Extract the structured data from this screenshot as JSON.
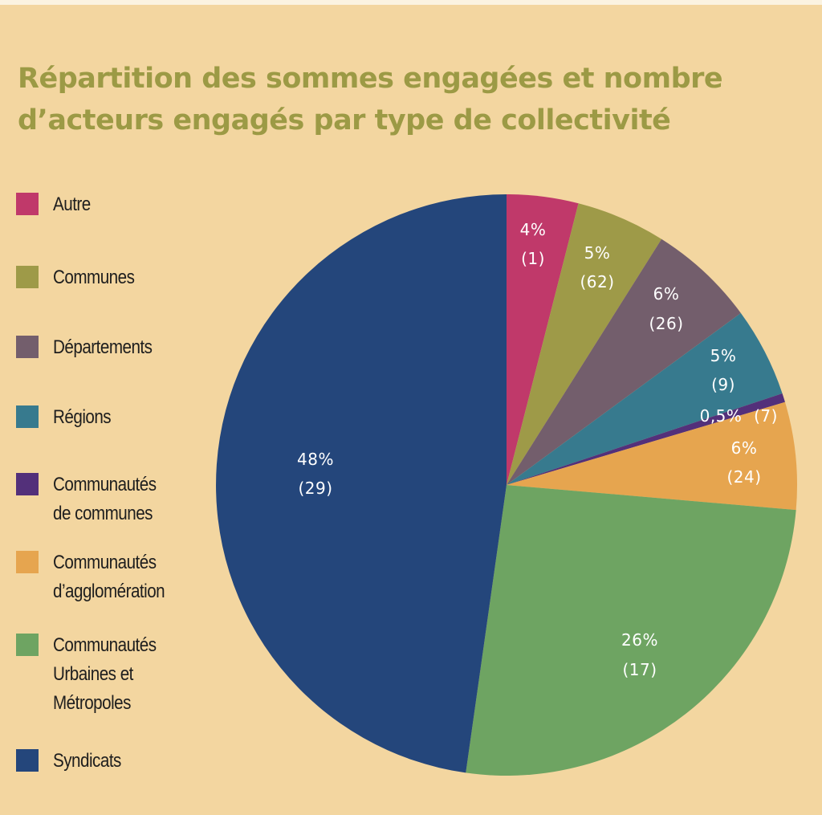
{
  "title": {
    "line1": "Répartition des sommes engagées et nombre",
    "line2": "d’acteurs engagés par type de collectivité"
  },
  "chart_data": {
    "type": "pie",
    "start_angle_deg": 0,
    "direction": "clockwise",
    "legend_position": "left",
    "series": [
      {
        "name": "Autre",
        "legend_lines": [
          "Autre"
        ],
        "percent": 4,
        "percent_label": "4%",
        "count": 1,
        "count_label": "(1)",
        "color": "#c0396a"
      },
      {
        "name": "Communes",
        "legend_lines": [
          "Communes"
        ],
        "percent": 5,
        "percent_label": "5%",
        "count": 62,
        "count_label": "(62)",
        "color": "#9e9a48"
      },
      {
        "name": "Départements",
        "legend_lines": [
          "Départements"
        ],
        "percent": 6,
        "percent_label": "6%",
        "count": 26,
        "count_label": "(26)",
        "color": "#735e6c"
      },
      {
        "name": "Régions",
        "legend_lines": [
          "Régions"
        ],
        "percent": 5,
        "percent_label": "5%",
        "count": 9,
        "count_label": "(9)",
        "color": "#377a8e"
      },
      {
        "name": "Communautés de communes",
        "legend_lines": [
          "Communautés",
          "de communes"
        ],
        "percent": 0.5,
        "percent_label": "0,5%",
        "count": 7,
        "count_label": "(7)",
        "color": "#53307a"
      },
      {
        "name": "Communautés d’agglomération",
        "legend_lines": [
          "Communautés",
          "d’agglomération"
        ],
        "percent": 6,
        "percent_label": "6%",
        "count": 24,
        "count_label": "(24)",
        "color": "#e6a54f"
      },
      {
        "name": "Communautés Urbaines et Métropoles",
        "legend_lines": [
          "Communautés",
          "Urbaines et",
          "Métropoles"
        ],
        "percent": 26,
        "percent_label": "26%",
        "count": 17,
        "count_label": "(17)",
        "color": "#6ea462"
      },
      {
        "name": "Syndicats",
        "legend_lines": [
          "Syndicats"
        ],
        "percent": 48,
        "percent_label": "48%",
        "count": 29,
        "count_label": "(29)",
        "color": "#24467b"
      }
    ]
  }
}
